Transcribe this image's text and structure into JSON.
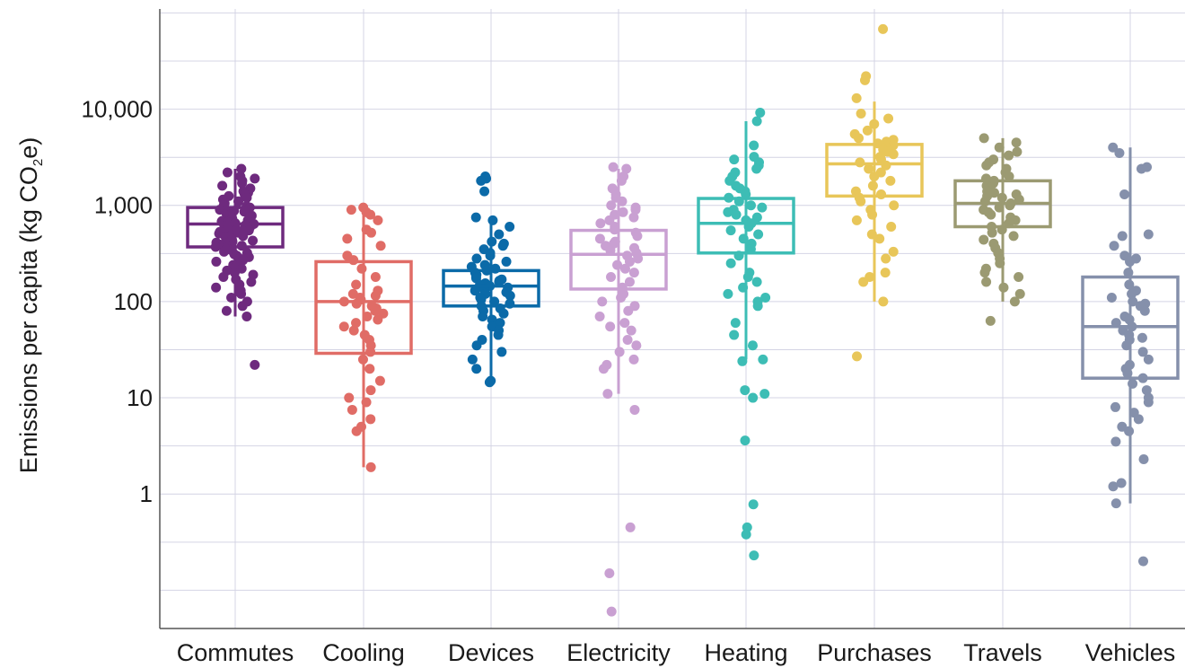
{
  "chart_data": {
    "type": "box",
    "ylabel": {
      "prefix": "Emissions per capita (kg CO",
      "sub": "2",
      "suffix": "e)"
    },
    "yscale": "log",
    "ylim": [
      0.04,
      110000
    ],
    "yticks": [
      {
        "value": 1,
        "label": "1"
      },
      {
        "value": 10,
        "label": "10"
      },
      {
        "value": 100,
        "label": "100"
      },
      {
        "value": 1000,
        "label": "1,000"
      },
      {
        "value": 10000,
        "label": "10,000"
      }
    ],
    "grid": true,
    "categories": [
      "Commutes",
      "Cooling",
      "Devices",
      "Electricity",
      "Heating",
      "Purchases",
      "Travels",
      "Vehicles"
    ],
    "series": [
      {
        "category": "Commutes",
        "color": "#6e2a7e",
        "box": {
          "q1": 370,
          "median": 640,
          "q3": 950,
          "whisker_low": 70,
          "whisker_high": 2400
        },
        "points": [
          2400,
          2200,
          2000,
          1900,
          1800,
          1700,
          1600,
          1500,
          1400,
          1350,
          1300,
          1250,
          1200,
          1150,
          1100,
          1050,
          1000,
          980,
          950,
          920,
          900,
          880,
          860,
          840,
          820,
          800,
          780,
          760,
          740,
          720,
          700,
          690,
          680,
          670,
          660,
          650,
          640,
          630,
          620,
          610,
          600,
          590,
          580,
          570,
          560,
          550,
          540,
          530,
          520,
          510,
          500,
          490,
          480,
          470,
          460,
          450,
          440,
          430,
          420,
          410,
          400,
          390,
          380,
          370,
          360,
          350,
          340,
          330,
          320,
          310,
          300,
          290,
          280,
          270,
          260,
          250,
          240,
          230,
          220,
          210,
          200,
          190,
          180,
          170,
          160,
          150,
          140,
          130,
          120,
          110,
          100,
          90,
          80,
          70,
          22
        ]
      },
      {
        "category": "Cooling",
        "color": "#e06c66",
        "box": {
          "q1": 29,
          "median": 100,
          "q3": 260,
          "whisker_low": 1.9,
          "whisker_high": 900
        },
        "points": [
          950,
          900,
          850,
          800,
          700,
          560,
          520,
          450,
          380,
          300,
          270,
          220,
          180,
          150,
          130,
          120,
          115,
          110,
          105,
          100,
          95,
          90,
          85,
          80,
          75,
          70,
          65,
          60,
          55,
          50,
          45,
          40,
          35,
          30,
          25,
          20,
          15,
          12,
          10,
          9,
          7.5,
          6,
          5,
          4.5,
          1.9
        ]
      },
      {
        "category": "Devices",
        "color": "#0b6aa8",
        "box": {
          "q1": 90,
          "median": 145,
          "q3": 210,
          "whisker_low": 15,
          "whisker_high": 720
        },
        "points": [
          2000,
          1900,
          1800,
          1400,
          750,
          700,
          600,
          500,
          420,
          400,
          380,
          350,
          320,
          300,
          280,
          260,
          240,
          230,
          220,
          210,
          200,
          190,
          180,
          175,
          170,
          165,
          160,
          155,
          150,
          145,
          140,
          135,
          130,
          125,
          120,
          115,
          110,
          105,
          100,
          95,
          90,
          85,
          80,
          75,
          70,
          65,
          60,
          55,
          50,
          45,
          40,
          35,
          30,
          25,
          20,
          15,
          14.5
        ]
      },
      {
        "category": "Electricity",
        "color": "#c9a0d2",
        "box": {
          "q1": 135,
          "median": 310,
          "q3": 550,
          "whisker_low": 11,
          "whisker_high": 2400
        },
        "points": [
          2500,
          2400,
          2000,
          1800,
          1500,
          1300,
          1200,
          1100,
          1000,
          950,
          900,
          850,
          800,
          750,
          700,
          650,
          600,
          560,
          520,
          480,
          450,
          420,
          400,
          380,
          360,
          340,
          320,
          300,
          280,
          260,
          240,
          220,
          200,
          180,
          160,
          140,
          120,
          110,
          100,
          90,
          80,
          70,
          60,
          55,
          50,
          40,
          35,
          30,
          25,
          22,
          20,
          11,
          7.5,
          0.45,
          0.15,
          0.06
        ]
      },
      {
        "category": "Heating",
        "color": "#3dbdb5",
        "box": {
          "q1": 320,
          "median": 650,
          "q3": 1180,
          "whisker_low": 25,
          "whisker_high": 7500
        },
        "points": [
          9200,
          7500,
          4200,
          3200,
          3000,
          2800,
          2600,
          2400,
          2200,
          2000,
          1800,
          1600,
          1500,
          1400,
          1300,
          1200,
          1100,
          1000,
          950,
          900,
          850,
          800,
          750,
          700,
          650,
          600,
          550,
          500,
          450,
          400,
          350,
          300,
          250,
          200,
          180,
          160,
          140,
          120,
          110,
          100,
          90,
          60,
          45,
          35,
          25,
          24,
          12,
          11,
          10,
          3.6,
          0.78,
          0.45,
          0.38,
          0.23
        ]
      },
      {
        "category": "Purchases",
        "color": "#e8c659",
        "box": {
          "q1": 1250,
          "median": 2700,
          "q3": 4300,
          "whisker_low": 100,
          "whisker_high": 12000
        },
        "points": [
          68000,
          22000,
          20000,
          13000,
          9000,
          8000,
          7000,
          6000,
          5500,
          5000,
          4800,
          4600,
          4400,
          4200,
          4000,
          3800,
          3600,
          3400,
          3200,
          3000,
          2800,
          2600,
          2400,
          2200,
          2000,
          1800,
          1600,
          1400,
          1300,
          1200,
          1100,
          1000,
          900,
          800,
          700,
          600,
          500,
          450,
          330,
          280,
          200,
          180,
          160,
          100,
          27
        ]
      },
      {
        "category": "Travels",
        "color": "#9b9a72",
        "box": {
          "q1": 600,
          "median": 1050,
          "q3": 1800,
          "whisker_low": 100,
          "whisker_high": 5000
        },
        "points": [
          5000,
          4500,
          4000,
          3600,
          3300,
          3000,
          2800,
          2600,
          2400,
          2200,
          2000,
          1900,
          1800,
          1700,
          1600,
          1500,
          1400,
          1350,
          1300,
          1250,
          1200,
          1150,
          1100,
          1050,
          1000,
          950,
          900,
          850,
          800,
          750,
          700,
          650,
          600,
          560,
          520,
          480,
          440,
          400,
          360,
          320,
          280,
          250,
          220,
          200,
          180,
          160,
          140,
          120,
          100,
          63
        ]
      },
      {
        "category": "Vehicles",
        "color": "#8590ab",
        "box": {
          "q1": 16,
          "median": 55,
          "q3": 180,
          "whisker_low": 0.8,
          "whisker_high": 4000
        },
        "points": [
          4000,
          3500,
          2500,
          2400,
          1300,
          500,
          480,
          380,
          300,
          280,
          260,
          200,
          150,
          130,
          120,
          110,
          100,
          95,
          90,
          80,
          70,
          65,
          60,
          55,
          50,
          45,
          42,
          40,
          35,
          30,
          25,
          22,
          20,
          18,
          16,
          14,
          12,
          10,
          9,
          8,
          7,
          6,
          5,
          4.5,
          3.5,
          2.3,
          1.3,
          1.2,
          0.8,
          0.2
        ]
      }
    ]
  }
}
